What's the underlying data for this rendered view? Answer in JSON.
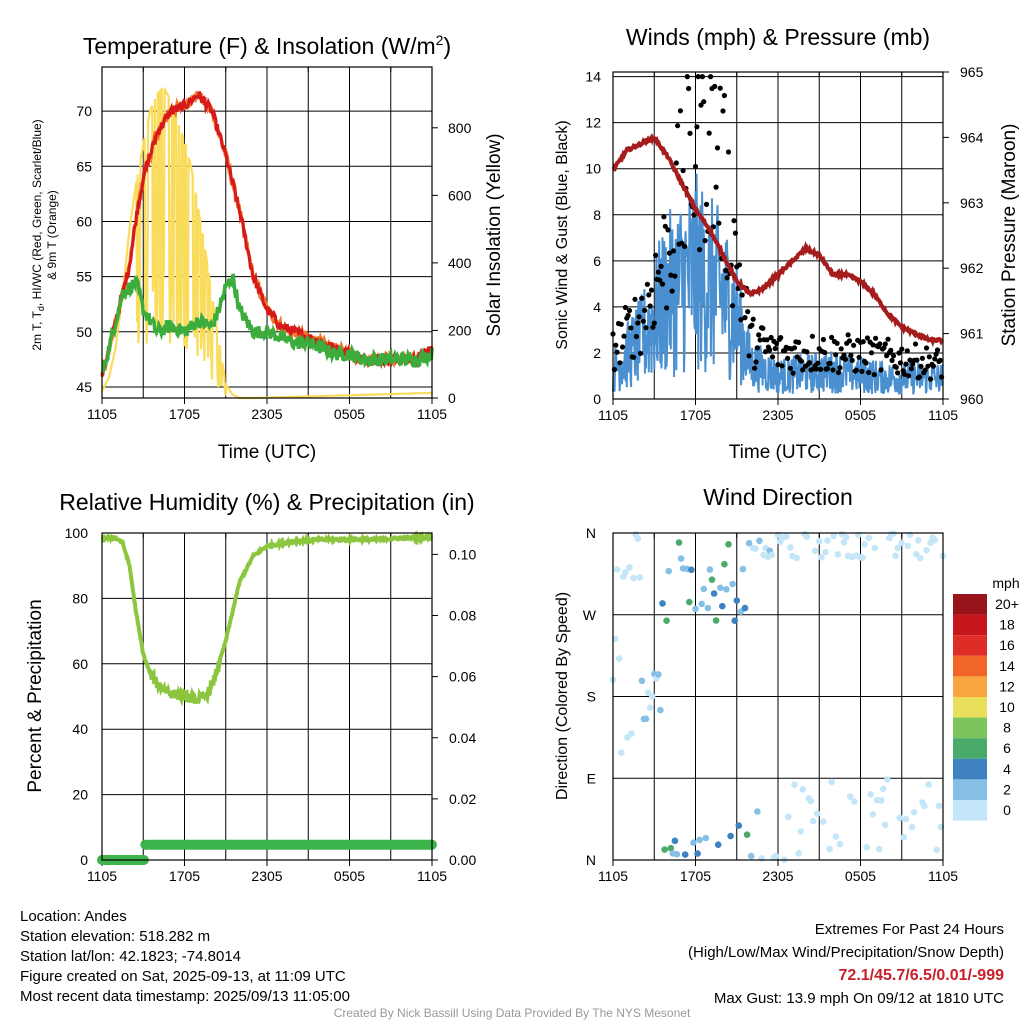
{
  "panels": {
    "temp": {
      "title": "Temperature (F) & Insolation (W/m²)",
      "ylabel_left": "2m T, Td, HI/WC (Red, Green, Scarlet/Blue) & 9m T (Orange)",
      "ylabel_left_line1": "2m T, T",
      "ylabel_left_sub": "d",
      "ylabel_left_line1b": ", HI/WC (Red, Green, Scarlet/Blue)",
      "ylabel_left_line2": "& 9m T (Orange)",
      "ylabel_right": "Solar Insolation (Yellow)",
      "xlabel": "Time (UTC)"
    },
    "winds": {
      "title": "Winds (mph) & Pressure (mb)",
      "ylabel_left": "Sonic Wind & Gust (Blue, Black)",
      "ylabel_right": "Station Pressure (Maroon)",
      "xlabel": "Time (UTC)"
    },
    "rh": {
      "title": "Relative Humidity (%) & Precipitation (in)",
      "ylabel_left": "Percent & Precipitation"
    },
    "wdir": {
      "title": "Wind Direction",
      "ylabel_left": "Direction (Colored By Speed)",
      "legend_title": "mph"
    }
  },
  "info": {
    "location": "Location: Andes",
    "elevation": "Station elevation: 518.282 m",
    "latlon": "Station lat/lon: 42.1823; -74.8014",
    "created": "Figure created on Sat, 2025-09-13, at 11:09 UTC",
    "recent": "Most recent data timestamp: 2025/09/13 11:05:00"
  },
  "extremes": {
    "header": "Extremes For Past 24 Hours",
    "subheader": "(High/Low/Max Wind/Precipitation/Snow Depth)",
    "values": "72.1/45.7/6.5/0.01/-999",
    "gust": "Max Gust: 13.9 mph On 09/12 at 1810 UTC"
  },
  "credit": "Created By Nick Bassill Using Data Provided By The NYS Mesonet",
  "colors": {
    "temp": "#d7191c",
    "temp9m": "#f07a28",
    "dewpoint": "#3cad3c",
    "insolation": "#f9dc5c",
    "wind": "#4a90d0",
    "gust": "#000000",
    "pressure": "#a51c1c",
    "rh": "#8cc63f",
    "precip": "#3cb44b",
    "grid": "#000000"
  },
  "chart_data": [
    {
      "type": "line",
      "panel": "temp",
      "x_ticks": [
        "1105",
        "1705",
        "2305",
        "0505",
        "1105"
      ],
      "ylim": [
        44,
        74
      ],
      "y_ticks": [
        45,
        50,
        55,
        60,
        65,
        70
      ],
      "y2lim": [
        0,
        980
      ],
      "y2_ticks": [
        0,
        200,
        400,
        600,
        800
      ],
      "series": [
        {
          "key": "temp",
          "hours": [
            0,
            1,
            2,
            2.5,
            3,
            4,
            5,
            6,
            7,
            8,
            9,
            10,
            11,
            12,
            13,
            14,
            15,
            16,
            17,
            18,
            19,
            20,
            21,
            22,
            23,
            24
          ],
          "values": [
            46,
            51,
            56,
            60.5,
            64,
            68,
            70,
            70.5,
            71.5,
            70,
            66,
            61,
            55,
            52,
            50.5,
            50,
            49.5,
            49,
            48.5,
            48,
            47.5,
            47.5,
            47.5,
            47.5,
            47.5,
            48.5
          ]
        },
        {
          "key": "dewpoint",
          "hours": [
            0,
            1,
            1.5,
            2,
            2.5,
            3,
            4,
            5,
            6,
            7,
            8,
            8.5,
            9,
            9.5,
            10,
            11,
            12,
            13,
            14,
            15,
            16,
            17,
            18,
            19,
            20,
            21,
            22,
            23,
            24
          ],
          "values": [
            46,
            51,
            53.5,
            54,
            54.5,
            52,
            50,
            50.5,
            50,
            51,
            50.5,
            52,
            54,
            55,
            52,
            50,
            50,
            49.5,
            49,
            49,
            48.5,
            48,
            48,
            47.5,
            47.5,
            47.5,
            47.5,
            47.5,
            48
          ]
        },
        {
          "key": "insolation",
          "hours": [
            0,
            0.5,
            1,
            1.5,
            2,
            2.5,
            3,
            3.5,
            4,
            4.5,
            5,
            5.5,
            6,
            6.5,
            7,
            7.5,
            8,
            8.5,
            9,
            9.5,
            10,
            11,
            24
          ],
          "values": [
            20,
            60,
            150,
            310,
            500,
            640,
            750,
            850,
            900,
            920,
            880,
            820,
            760,
            680,
            560,
            440,
            300,
            170,
            40,
            10,
            0,
            0,
            15
          ]
        }
      ]
    },
    {
      "type": "line",
      "panel": "winds",
      "x_ticks": [
        "1105",
        "1705",
        "2305",
        "0505",
        "1105"
      ],
      "ylim": [
        0,
        14.2
      ],
      "y_ticks": [
        0,
        2,
        4,
        6,
        8,
        10,
        12,
        14
      ],
      "y2lim": [
        960,
        965
      ],
      "y2_ticks": [
        960,
        961,
        962,
        963,
        964,
        965
      ],
      "series": [
        {
          "key": "pressure",
          "hours": [
            0,
            1,
            2,
            3,
            4,
            5,
            6,
            7,
            8,
            9,
            10,
            11,
            12,
            13,
            14,
            15,
            16,
            17,
            18,
            19,
            20,
            21,
            22,
            23,
            24
          ],
          "values": [
            963.5,
            963.8,
            963.9,
            964.0,
            963.7,
            963.3,
            962.9,
            962.6,
            962.2,
            961.8,
            961.6,
            961.7,
            961.9,
            962.1,
            962.3,
            962.2,
            961.9,
            961.9,
            961.8,
            961.6,
            961.3,
            961.1,
            961.0,
            960.9,
            960.9
          ]
        },
        {
          "key": "wind_mean",
          "hours": [
            0,
            2,
            4,
            6,
            8,
            9,
            10,
            12,
            16,
            20,
            24
          ],
          "values": [
            1.2,
            2.5,
            4.5,
            5.5,
            4.5,
            3.5,
            1.5,
            1.0,
            1.2,
            0.9,
            0.9
          ]
        },
        {
          "key": "gust_mean",
          "hours": [
            0,
            2,
            4,
            5,
            6,
            7,
            8,
            9,
            10,
            12,
            16,
            20,
            24
          ],
          "values": [
            2.2,
            3.5,
            6.5,
            9,
            11,
            12,
            9.5,
            6,
            2.5,
            2.0,
            2.0,
            1.8,
            1.5
          ]
        }
      ]
    },
    {
      "type": "line",
      "panel": "rh",
      "x_ticks": [
        "1105",
        "1705",
        "2305",
        "0505",
        "1105"
      ],
      "ylim": [
        0,
        100
      ],
      "y_ticks": [
        0,
        20,
        40,
        60,
        80,
        100
      ],
      "y2lim": [
        0,
        0.107
      ],
      "y2_ticks": [
        "0.00",
        "0.02",
        "0.04",
        "0.06",
        "0.08",
        "0.10"
      ],
      "series": [
        {
          "key": "rh",
          "hours": [
            0,
            1,
            1.5,
            2,
            2.5,
            3,
            3.5,
            4,
            5,
            6,
            7,
            7.5,
            8,
            9,
            10,
            10.5,
            11,
            12,
            14,
            16,
            18,
            20,
            22,
            24
          ],
          "values": [
            98.5,
            98.5,
            97,
            90,
            75,
            63,
            57,
            54,
            51,
            50,
            49,
            50,
            53,
            67,
            85,
            89,
            93,
            96,
            97.5,
            98,
            98,
            98,
            98.5,
            98.5
          ]
        },
        {
          "key": "precip",
          "hours": [
            0,
            3.1,
            3.1,
            24
          ],
          "values": [
            0.0,
            0.0,
            0.005,
            0.005
          ]
        }
      ]
    },
    {
      "type": "scatter",
      "panel": "wdir",
      "x_ticks": [
        "1105",
        "1705",
        "2305",
        "0505",
        "1105"
      ],
      "y_ticks": [
        "N",
        "E",
        "S",
        "W",
        "N"
      ],
      "legend_values": [
        "20+",
        "18",
        "16",
        "14",
        "12",
        "10",
        "8",
        "6",
        "4",
        "2",
        "0"
      ],
      "legend_colors": [
        "#99141a",
        "#c4161c",
        "#de2d26",
        "#f26529",
        "#f9a541",
        "#e8e05a",
        "#7cc45c",
        "#4aaa6a",
        "#3e82c2",
        "#86c0e6",
        "#c3e6f8"
      ]
    }
  ]
}
